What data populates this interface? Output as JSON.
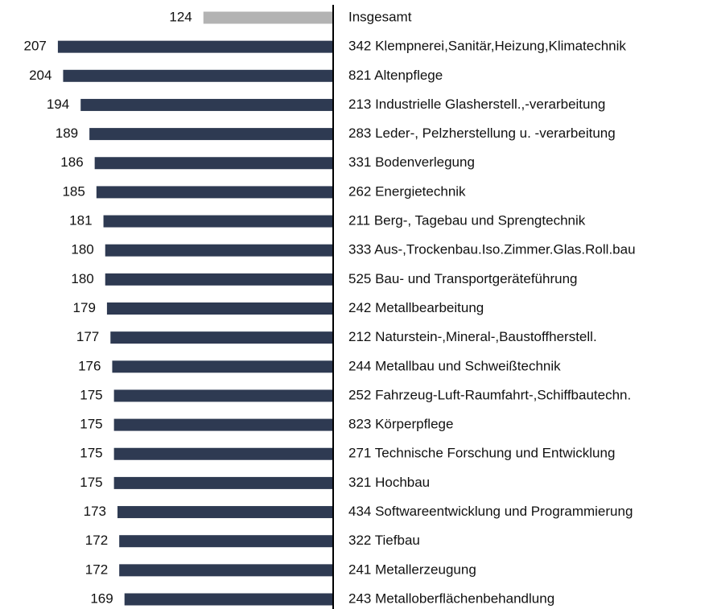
{
  "chart_data": {
    "type": "bar",
    "orientation": "horizontal",
    "categories": [
      "Insgesamt",
      "342 Klempnerei,Sanitär,Heizung,Klimatechnik",
      "821 Altenpflege",
      "213 Industrielle Glasherstell.,-verarbeitung",
      "283 Leder-, Pelzherstellung u. -verarbeitung",
      "331 Bodenverlegung",
      "262 Energietechnik",
      "211 Berg-, Tagebau und Sprengtechnik",
      "333 Aus-,Trockenbau.Iso.Zimmer.Glas.Roll.bau",
      "525 Bau- und Transportgeräteführung",
      "242 Metallbearbeitung",
      "212 Naturstein-,Mineral-,Baustoffherstell.",
      "244 Metallbau und Schweißtechnik",
      "252 Fahrzeug-Luft-Raumfahrt-,Schiffbautechn.",
      "823 Körperpflege",
      "271 Technische Forschung und Entwicklung",
      "321 Hochbau",
      "434 Softwareentwicklung und Programmierung",
      "322 Tiefbau",
      "241 Metallerzeugung",
      "243 Metalloberflächenbehandlung"
    ],
    "values": [
      124,
      207,
      204,
      194,
      189,
      186,
      185,
      181,
      180,
      180,
      179,
      177,
      176,
      175,
      175,
      175,
      175,
      173,
      172,
      172,
      169
    ],
    "colors": [
      "#b3b3b3",
      "#2e3a52",
      "#2e3a52",
      "#2e3a52",
      "#2e3a52",
      "#2e3a52",
      "#2e3a52",
      "#2e3a52",
      "#2e3a52",
      "#2e3a52",
      "#2e3a52",
      "#2e3a52",
      "#2e3a52",
      "#2e3a52",
      "#2e3a52",
      "#2e3a52",
      "#2e3a52",
      "#2e3a52",
      "#2e3a52",
      "#2e3a52",
      "#2e3a52"
    ],
    "xlim": [
      50,
      240
    ]
  }
}
